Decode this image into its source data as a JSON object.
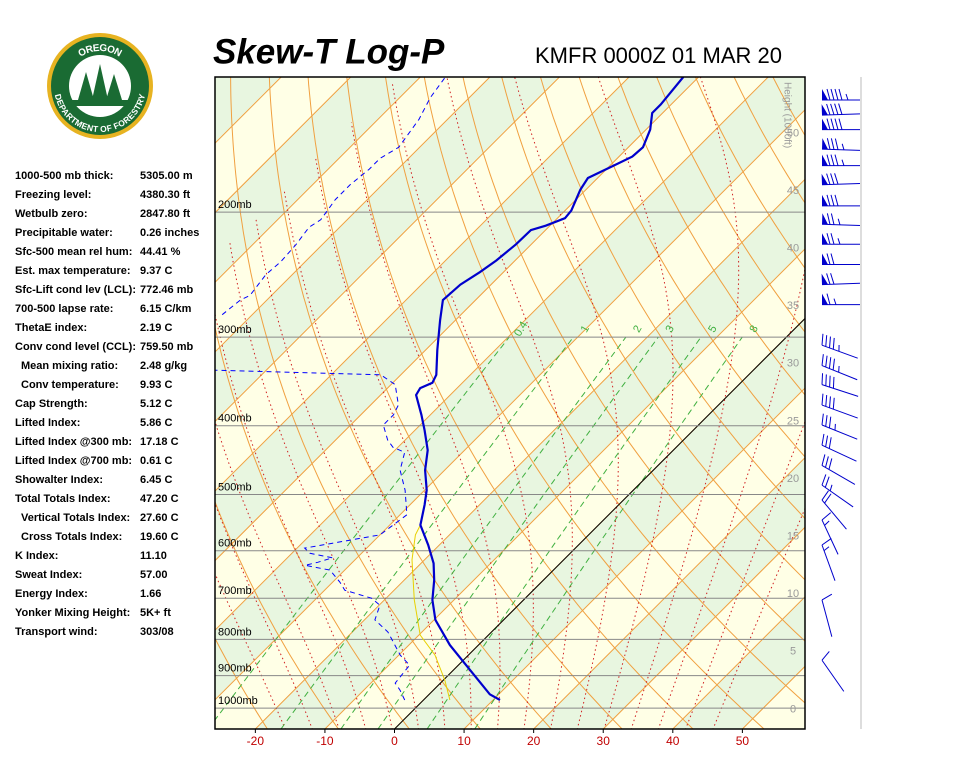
{
  "logo": {
    "top": "OREGON",
    "bottom": "DEPARTMENT OF FORESTRY"
  },
  "title": "Skew-T Log-P",
  "station": "KMFR 0000Z 01 MAR 20",
  "indices": [
    {
      "label": "1000-500 mb thick:",
      "value": "5305.00 m"
    },
    {
      "label": "Freezing level:",
      "value": "4380.30 ft"
    },
    {
      "label": "Wetbulb zero:",
      "value": "2847.80 ft"
    },
    {
      "label": "Precipitable water:",
      "value": "0.26 inches"
    },
    {
      "label": "Sfc-500 mean rel hum:",
      "value": "44.41 %"
    },
    {
      "label": "Est. max temperature:",
      "value": "9.37 C"
    },
    {
      "label": "Sfc-Lift cond lev (LCL):",
      "value": "772.46 mb"
    },
    {
      "label": "700-500 lapse rate:",
      "value": "6.15 C/km"
    },
    {
      "label": "ThetaE index:",
      "value": "2.19 C"
    },
    {
      "label": "Conv cond level (CCL):",
      "value": "759.50 mb"
    },
    {
      "label": "Mean mixing ratio:",
      "value": "2.48 g/kg",
      "indent": true
    },
    {
      "label": "Conv temperature:",
      "value": "9.93 C",
      "indent": true
    },
    {
      "label": "Cap Strength:",
      "value": "5.12 C"
    },
    {
      "label": "Lifted Index:",
      "value": "5.86 C"
    },
    {
      "label": "Lifted Index @300 mb:",
      "value": "17.18 C"
    },
    {
      "label": "Lifted Index @700 mb:",
      "value": "0.61 C"
    },
    {
      "label": "Showalter Index:",
      "value": "6.45 C"
    },
    {
      "label": "Total Totals Index:",
      "value": "47.20 C"
    },
    {
      "label": "Vertical Totals Index:",
      "value": "27.60 C",
      "indent": true
    },
    {
      "label": "Cross Totals Index:",
      "value": "19.60 C",
      "indent": true
    },
    {
      "label": "K Index:",
      "value": "11.10"
    },
    {
      "label": "Sweat Index:",
      "value": "57.00"
    },
    {
      "label": "Energy Index:",
      "value": "1.66"
    },
    {
      "label": "Yonker Mixing Height:",
      "value": "5K+ ft"
    },
    {
      "label": "Transport wind:",
      "value": "303/08"
    }
  ],
  "chart_data": {
    "type": "skewt",
    "xlim": [
      -25.8,
      59.0
    ],
    "xticks": [
      -20,
      -10,
      0,
      10,
      20,
      30,
      40,
      50
    ],
    "ylim": [
      1070,
      129
    ],
    "yticks": [
      {
        "value": 200,
        "label": "200mb"
      },
      {
        "value": 300,
        "label": "300mb"
      },
      {
        "value": 400,
        "label": "400mb"
      },
      {
        "value": 500,
        "label": "500mb"
      },
      {
        "value": 600,
        "label": "600mb"
      },
      {
        "value": 700,
        "label": "700mb"
      },
      {
        "value": 800,
        "label": "800mb"
      },
      {
        "value": 900,
        "label": "900mb"
      },
      {
        "value": 1000,
        "label": "1000mb"
      }
    ],
    "height_label": "Height (1000ft)",
    "height_lim": [
      -1.7,
      54.9
    ],
    "height_ticks": [
      0,
      5,
      10,
      15,
      20,
      25,
      30,
      35,
      40,
      45,
      50
    ],
    "mixing_ratio_labels": [
      0.4,
      1,
      2,
      3,
      5,
      8
    ],
    "freezing_isotherm": 0,
    "temperature": {
      "color": "#0000cc",
      "p": [
        974,
        956,
        884,
        815,
        751,
        704,
        660,
        625,
        589,
        552,
        517,
        493,
        462,
        433,
        406,
        386,
        362,
        354,
        348,
        339,
        313,
        284,
        266,
        253,
        243,
        234,
        222,
        212,
        209,
        204,
        199,
        186,
        179,
        172,
        167,
        162,
        153,
        145,
        141,
        129
      ],
      "t": [
        11.0,
        8.7,
        2.4,
        -4.1,
        -9.8,
        -13.1,
        -15.7,
        -18.2,
        -21.6,
        -25.6,
        -27.9,
        -29.7,
        -32.8,
        -35.3,
        -38.6,
        -41.3,
        -44.9,
        -45.3,
        -44.3,
        -44.9,
        -48.3,
        -52.2,
        -54.7,
        -54.4,
        -53.4,
        -52.7,
        -52.2,
        -52.1,
        -50.6,
        -48.9,
        -49.1,
        -50.8,
        -51.4,
        -49.5,
        -48.1,
        -47.9,
        -49.4,
        -51.5,
        -51.5,
        -52.2
      ]
    },
    "dewpoint": {
      "color": "#0000ff",
      "p": [
        974,
        943,
        922,
        870,
        842,
        815,
        781,
        751,
        716,
        700,
        682,
        664,
        639,
        629,
        623,
        614,
        605,
        595,
        570,
        534,
        493,
        462,
        436,
        429,
        419,
        399,
        386,
        374,
        350,
        339,
        334,
        null,
        279,
        266,
        262,
        245,
        235,
        222,
        210,
        205,
        192,
        183,
        174,
        168,
        162,
        148,
        138,
        129
      ],
      "t": [
        -2.7,
        -4.8,
        -6.5,
        -7.0,
        -9.8,
        -12.0,
        -14.9,
        -18.5,
        -19.9,
        -22.1,
        -27.1,
        -29.0,
        -32.1,
        -36.4,
        -35.0,
        -33.5,
        -37.4,
        -38.9,
        -30.0,
        -29.0,
        -32.8,
        -36.4,
        -38.3,
        -40.7,
        -42.5,
        -45.3,
        -45.3,
        -46.0,
        -49.4,
        -52.9,
        -77.4,
        null,
        -84.3,
        -83.8,
        -83.1,
        -83.8,
        -83.5,
        -83.8,
        -84.4,
        -83.8,
        -84.6,
        -84.6,
        -84.1,
        -84.1,
        -83.0,
        -84.1,
        -85.6,
        -86.4
      ]
    },
    "wetbulb": {
      "color": "#e8d000",
      "p": [
        974,
        913,
        842,
        789,
        704,
        618,
        570,
        552
      ],
      "t": [
        3.8,
        0.2,
        -4.8,
        -9.8,
        -15.7,
        -21.8,
        -24.9,
        -25.6
      ]
    },
    "winds": {
      "color": "#0000cc",
      "p": [
        139,
        146,
        153,
        163,
        172,
        183,
        196,
        208,
        222,
        237,
        253,
        270,
        308,
        329,
        350,
        374,
        399,
        426,
        455,
        485,
        509,
        543,
        589,
        704,
        856
      ],
      "direction": [
        270,
        268,
        270,
        272,
        270,
        268,
        270,
        272,
        270,
        270,
        268,
        270,
        290,
        292,
        288,
        290,
        292,
        295,
        300,
        305,
        320,
        335,
        340,
        345,
        325
      ],
      "speed": [
        95,
        90,
        90,
        85,
        85,
        80,
        80,
        75,
        75,
        70,
        70,
        65,
        45,
        45,
        40,
        40,
        35,
        30,
        30,
        25,
        20,
        15,
        15,
        10,
        10
      ]
    }
  }
}
